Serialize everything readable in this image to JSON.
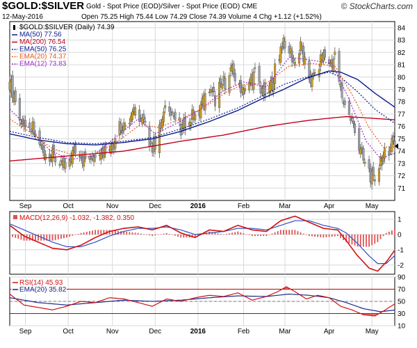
{
  "header": {
    "symbol": "$GOLD:$SILVER",
    "description": "Gold - Spot Price (EOD)/Silver - Spot Price (EOD)",
    "exchange": "CME",
    "date": "12-May-2016",
    "ohlc": "Open 75.25  High 75.44  Low 74.29  Close 74.39  Volume 4  Chg +1.12 (+1.52%)",
    "change_badge": "▲",
    "brand": "© StockCharts.com"
  },
  "colors": {
    "up": "#d4a11c",
    "down": "#9aa3ad",
    "ma50": "#0a1a8c",
    "ma200": "#c00020",
    "ema50": "#0a1a8c",
    "ema20": "#e85a1a",
    "ema12": "#9b2fc9",
    "macd": "#d01010",
    "signal": "#3050c0",
    "hist": "#e05050",
    "rsi": "#d01010",
    "rsi_ema": "#1a2a8c",
    "grid": "#d8d8d8",
    "threshold": "#c00000"
  },
  "chart_data": [
    {
      "type": "candlestick",
      "legend": [
        {
          "label": "$GOLD:$SILVER (Daily) 74.39",
          "color": "#000000",
          "style": "price"
        },
        {
          "label": "MA(50) 77.56",
          "color": "#0a1a8c",
          "style": "solid"
        },
        {
          "label": "MA(200) 76.54",
          "color": "#c00020",
          "style": "solid"
        },
        {
          "label": "EMA(50) 76.25",
          "color": "#0a1a8c",
          "style": "dotted"
        },
        {
          "label": "EMA(20) 74.37",
          "color": "#e85a1a",
          "style": "dotted"
        },
        {
          "label": "EMA(12) 73.83",
          "color": "#9b2fc9",
          "style": "dotted"
        }
      ],
      "ylim": [
        70,
        84.5
      ],
      "y_ticks": [
        71,
        72,
        73,
        74,
        75,
        76,
        77,
        78,
        79,
        80,
        81,
        82,
        83,
        84
      ],
      "x_ticks": [
        "Sep",
        "Oct",
        "Nov",
        "Dec",
        "2016",
        "Feb",
        "Mar",
        "Apr",
        "May"
      ],
      "x_tick_days": [
        11,
        41,
        72,
        102,
        132,
        164,
        193,
        224,
        254
      ],
      "days": 271,
      "grid": true,
      "price_points": [
        [
          0,
          79.6
        ],
        [
          4,
          78.2
        ],
        [
          8,
          76.5
        ],
        [
          12,
          75.2
        ],
        [
          16,
          75.8
        ],
        [
          20,
          74.6
        ],
        [
          24,
          74.1
        ],
        [
          28,
          73.6
        ],
        [
          32,
          73.4
        ],
        [
          36,
          72.6
        ],
        [
          40,
          72.8
        ],
        [
          44,
          73.8
        ],
        [
          48,
          74.4
        ],
        [
          52,
          73.2
        ],
        [
          56,
          73.6
        ],
        [
          60,
          73.9
        ],
        [
          64,
          74.4
        ],
        [
          68,
          74.0
        ],
        [
          72,
          74.6
        ],
        [
          76,
          76.2
        ],
        [
          80,
          76.0
        ],
        [
          84,
          76.8
        ],
        [
          88,
          77.6
        ],
        [
          92,
          76.6
        ],
        [
          96,
          75.8
        ],
        [
          100,
          74.2
        ],
        [
          104,
          75.2
        ],
        [
          108,
          76.9
        ],
        [
          112,
          77.8
        ],
        [
          116,
          76.6
        ],
        [
          120,
          75.6
        ],
        [
          124,
          76.4
        ],
        [
          128,
          76.8
        ],
        [
          132,
          77.3
        ],
        [
          136,
          78.1
        ],
        [
          140,
          78.8
        ],
        [
          144,
          78.2
        ],
        [
          148,
          79.3
        ],
        [
          152,
          79.8
        ],
        [
          156,
          80.4
        ],
        [
          160,
          79.6
        ],
        [
          164,
          79.0
        ],
        [
          168,
          79.6
        ],
        [
          172,
          80.3
        ],
        [
          176,
          79.1
        ],
        [
          180,
          78.4
        ],
        [
          184,
          79.6
        ],
        [
          188,
          81.5
        ],
        [
          192,
          83.1
        ],
        [
          196,
          82.2
        ],
        [
          200,
          81.1
        ],
        [
          204,
          82.4
        ],
        [
          208,
          80.7
        ],
        [
          212,
          79.6
        ],
        [
          216,
          80.9
        ],
        [
          220,
          81.8
        ],
        [
          224,
          81.1
        ],
        [
          228,
          81.6
        ],
        [
          232,
          78.9
        ],
        [
          236,
          77.2
        ],
        [
          240,
          76.4
        ],
        [
          244,
          74.6
        ],
        [
          248,
          73.2
        ],
        [
          252,
          72.4
        ],
        [
          256,
          71.1
        ],
        [
          260,
          73.4
        ],
        [
          264,
          73.7
        ],
        [
          268,
          74.9
        ],
        [
          270,
          74.4
        ]
      ],
      "ma50_points": [
        [
          0,
          75.4
        ],
        [
          20,
          74.9
        ],
        [
          40,
          74.6
        ],
        [
          60,
          74.5
        ],
        [
          80,
          74.7
        ],
        [
          100,
          75.0
        ],
        [
          120,
          75.6
        ],
        [
          140,
          76.4
        ],
        [
          160,
          77.3
        ],
        [
          176,
          78.2
        ],
        [
          192,
          79.0
        ],
        [
          208,
          79.9
        ],
        [
          224,
          80.5
        ],
        [
          232,
          80.4
        ],
        [
          244,
          79.8
        ],
        [
          256,
          78.7
        ],
        [
          270,
          77.56
        ]
      ],
      "ma200_points": [
        [
          0,
          73.2
        ],
        [
          40,
          73.6
        ],
        [
          80,
          74.0
        ],
        [
          120,
          74.8
        ],
        [
          150,
          75.3
        ],
        [
          180,
          76.0
        ],
        [
          210,
          76.5
        ],
        [
          236,
          76.8
        ],
        [
          270,
          76.54
        ]
      ],
      "ema50_points": [
        [
          0,
          75.6
        ],
        [
          20,
          75.1
        ],
        [
          40,
          74.7
        ],
        [
          60,
          74.6
        ],
        [
          80,
          74.8
        ],
        [
          100,
          75.1
        ],
        [
          120,
          75.8
        ],
        [
          140,
          76.6
        ],
        [
          160,
          77.5
        ],
        [
          176,
          78.4
        ],
        [
          192,
          79.4
        ],
        [
          208,
          80.0
        ],
        [
          224,
          80.4
        ],
        [
          232,
          80.0
        ],
        [
          244,
          78.8
        ],
        [
          256,
          77.4
        ],
        [
          270,
          76.25
        ]
      ],
      "ema20_points": [
        [
          0,
          76.6
        ],
        [
          16,
          75.4
        ],
        [
          30,
          74.2
        ],
        [
          44,
          73.7
        ],
        [
          60,
          73.8
        ],
        [
          76,
          74.8
        ],
        [
          92,
          76.2
        ],
        [
          104,
          75.9
        ],
        [
          120,
          76.6
        ],
        [
          136,
          77.5
        ],
        [
          152,
          78.8
        ],
        [
          164,
          79.4
        ],
        [
          180,
          79.5
        ],
        [
          196,
          80.9
        ],
        [
          212,
          81.1
        ],
        [
          228,
          80.9
        ],
        [
          240,
          78.6
        ],
        [
          252,
          75.9
        ],
        [
          262,
          74.3
        ],
        [
          270,
          74.37
        ]
      ],
      "ema12_points": [
        [
          0,
          77.4
        ],
        [
          14,
          75.8
        ],
        [
          28,
          74.1
        ],
        [
          42,
          73.3
        ],
        [
          58,
          73.6
        ],
        [
          74,
          75.1
        ],
        [
          90,
          76.6
        ],
        [
          102,
          75.4
        ],
        [
          118,
          76.3
        ],
        [
          134,
          77.4
        ],
        [
          150,
          78.9
        ],
        [
          164,
          79.6
        ],
        [
          180,
          79.2
        ],
        [
          196,
          81.6
        ],
        [
          210,
          81.4
        ],
        [
          226,
          81.1
        ],
        [
          238,
          78.2
        ],
        [
          250,
          74.8
        ],
        [
          260,
          73.4
        ],
        [
          270,
          73.83
        ]
      ]
    },
    {
      "type": "line",
      "legend": "MACD(12,26,9) -1.032, -1.382, 0.350",
      "ylim": [
        -2.6,
        1.5
      ],
      "y_ticks": [
        1,
        0,
        -1,
        -2
      ],
      "macd_points": [
        [
          0,
          0.6
        ],
        [
          10,
          -0.1
        ],
        [
          20,
          -0.5
        ],
        [
          30,
          -0.9
        ],
        [
          40,
          -1.0
        ],
        [
          50,
          -0.7
        ],
        [
          60,
          -0.2
        ],
        [
          70,
          0.2
        ],
        [
          80,
          0.4
        ],
        [
          90,
          0.5
        ],
        [
          100,
          0.3
        ],
        [
          110,
          0.6
        ],
        [
          120,
          0.1
        ],
        [
          130,
          -0.2
        ],
        [
          140,
          0.3
        ],
        [
          150,
          0.2
        ],
        [
          160,
          0.6
        ],
        [
          170,
          0.3
        ],
        [
          180,
          0.2
        ],
        [
          190,
          0.9
        ],
        [
          200,
          1.2
        ],
        [
          210,
          0.8
        ],
        [
          220,
          0.4
        ],
        [
          230,
          0.3
        ],
        [
          236,
          -0.4
        ],
        [
          244,
          -1.4
        ],
        [
          252,
          -2.2
        ],
        [
          258,
          -2.4
        ],
        [
          264,
          -1.8
        ],
        [
          270,
          -1.03
        ]
      ],
      "signal_points": [
        [
          0,
          0.7
        ],
        [
          10,
          0.3
        ],
        [
          20,
          -0.1
        ],
        [
          30,
          -0.5
        ],
        [
          40,
          -0.8
        ],
        [
          50,
          -0.8
        ],
        [
          60,
          -0.5
        ],
        [
          70,
          -0.1
        ],
        [
          80,
          0.2
        ],
        [
          90,
          0.4
        ],
        [
          100,
          0.4
        ],
        [
          110,
          0.5
        ],
        [
          120,
          0.3
        ],
        [
          130,
          0.0
        ],
        [
          140,
          0.1
        ],
        [
          150,
          0.2
        ],
        [
          160,
          0.4
        ],
        [
          170,
          0.4
        ],
        [
          180,
          0.3
        ],
        [
          190,
          0.6
        ],
        [
          200,
          0.9
        ],
        [
          210,
          0.9
        ],
        [
          220,
          0.6
        ],
        [
          230,
          0.4
        ],
        [
          236,
          0.1
        ],
        [
          244,
          -0.6
        ],
        [
          252,
          -1.4
        ],
        [
          258,
          -1.9
        ],
        [
          264,
          -1.9
        ],
        [
          270,
          -1.38
        ]
      ]
    },
    {
      "type": "line",
      "legend": [
        "RSI(14) 45.93",
        "EMA(20) 35.82"
      ],
      "ylim": [
        10,
        90
      ],
      "y_ticks": [
        90,
        70,
        50,
        30,
        10
      ],
      "overbought": 70,
      "oversold": 30,
      "rsi_points": [
        [
          0,
          62
        ],
        [
          10,
          44
        ],
        [
          20,
          40
        ],
        [
          30,
          36
        ],
        [
          40,
          42
        ],
        [
          50,
          50
        ],
        [
          60,
          48
        ],
        [
          70,
          56
        ],
        [
          80,
          54
        ],
        [
          90,
          48
        ],
        [
          100,
          42
        ],
        [
          110,
          54
        ],
        [
          120,
          50
        ],
        [
          130,
          56
        ],
        [
          140,
          60
        ],
        [
          150,
          58
        ],
        [
          160,
          64
        ],
        [
          170,
          52
        ],
        [
          180,
          58
        ],
        [
          188,
          66
        ],
        [
          194,
          74
        ],
        [
          200,
          66
        ],
        [
          208,
          54
        ],
        [
          216,
          60
        ],
        [
          224,
          56
        ],
        [
          232,
          42
        ],
        [
          240,
          36
        ],
        [
          248,
          28
        ],
        [
          256,
          26
        ],
        [
          262,
          34
        ],
        [
          270,
          45.93
        ]
      ],
      "rsi_ema_points": [
        [
          0,
          56
        ],
        [
          20,
          48
        ],
        [
          40,
          44
        ],
        [
          60,
          48
        ],
        [
          80,
          52
        ],
        [
          100,
          50
        ],
        [
          120,
          52
        ],
        [
          140,
          56
        ],
        [
          160,
          59
        ],
        [
          180,
          58
        ],
        [
          196,
          62
        ],
        [
          210,
          60
        ],
        [
          224,
          56
        ],
        [
          236,
          48
        ],
        [
          248,
          38
        ],
        [
          260,
          33
        ],
        [
          270,
          35.82
        ]
      ]
    }
  ]
}
